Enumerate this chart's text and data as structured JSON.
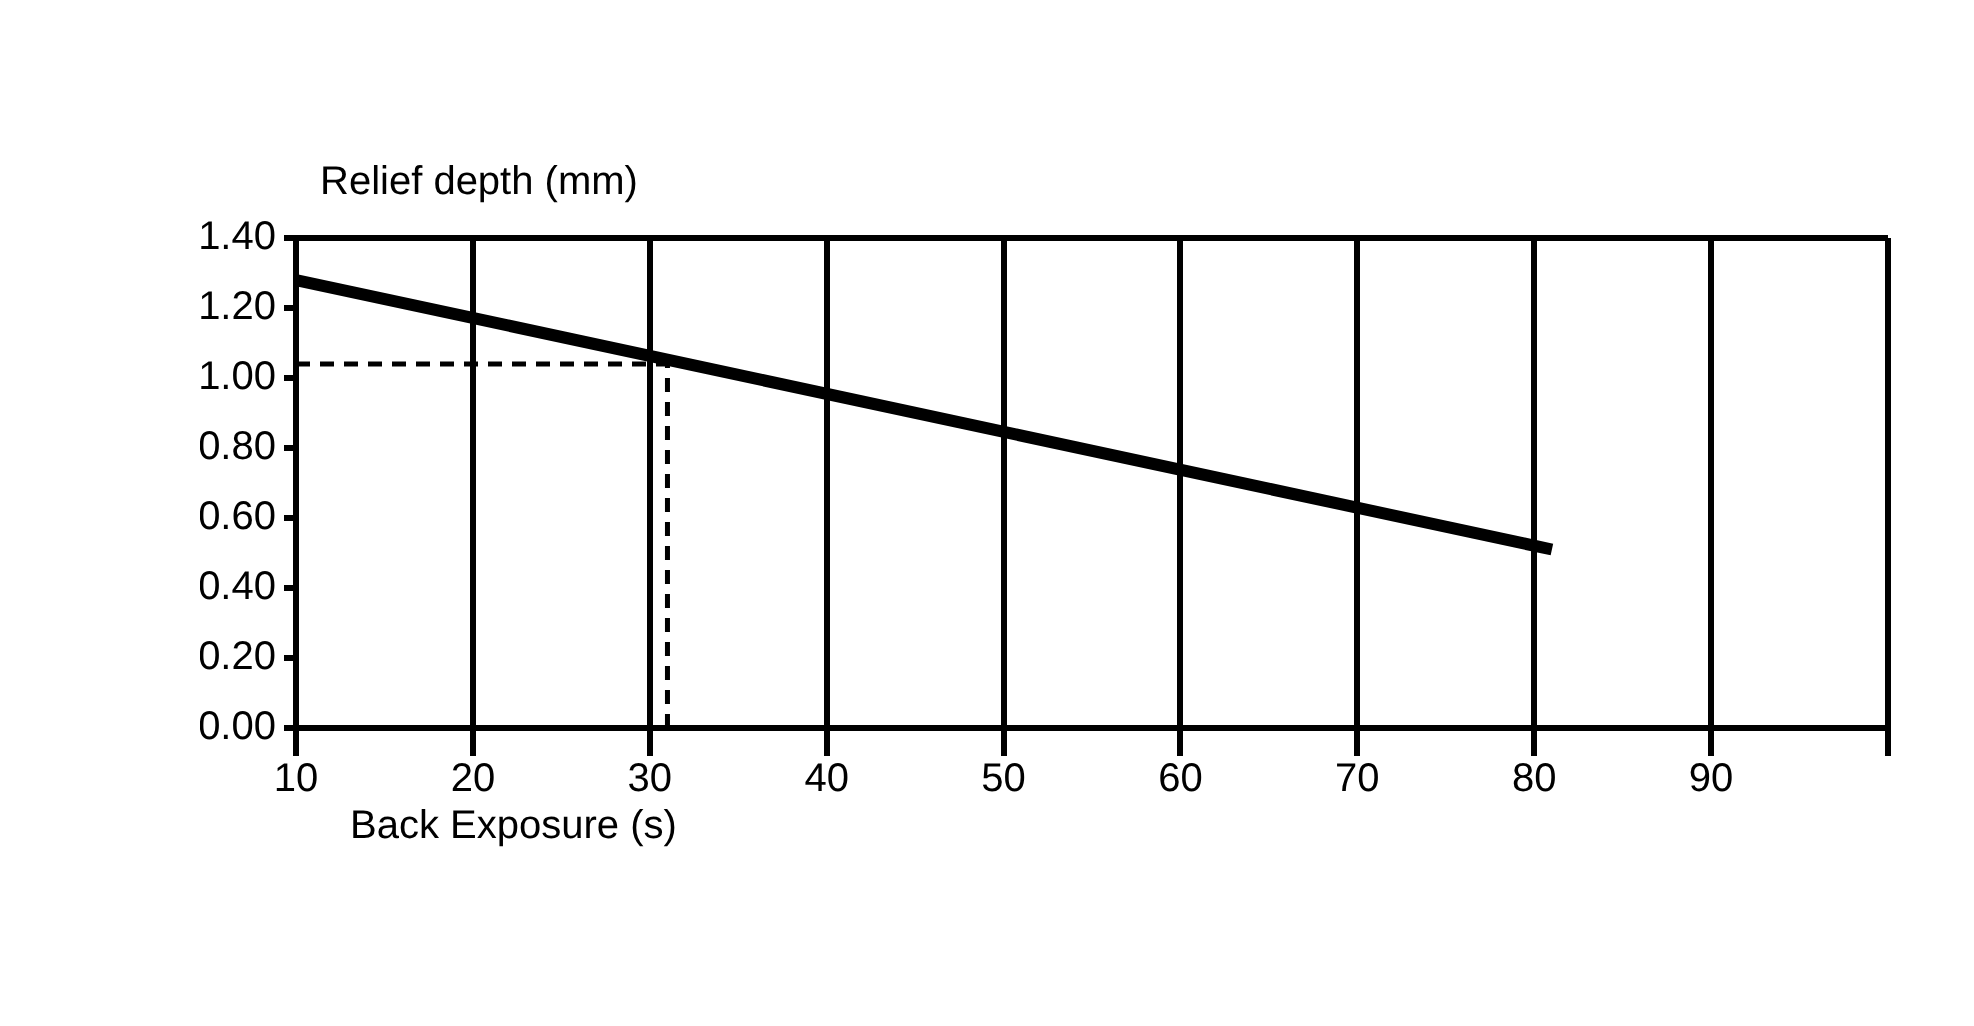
{
  "chart_data": {
    "type": "line",
    "xlabel": "Back Exposure (s)",
    "ylabel": "Relief depth (mm)",
    "x": [
      10,
      81
    ],
    "series": [
      {
        "color": "#000000",
        "values": [
          1.28,
          0.51
        ]
      }
    ],
    "xlim": [
      10,
      100
    ],
    "xticks": [
      10,
      20,
      30,
      40,
      50,
      60,
      70,
      80,
      90,
      {
        "value": 100,
        "label": null
      }
    ],
    "ylim": [
      0,
      1.4
    ],
    "yticks": [
      {
        "value": 0,
        "label": "0.00"
      },
      {
        "value": 0.2,
        "label": "0.20"
      },
      {
        "value": 0.4,
        "label": "0.40"
      },
      {
        "value": 0.6,
        "label": "0.60"
      },
      {
        "value": 0.8,
        "label": "0.80"
      },
      {
        "value": 1,
        "label": "1.00"
      },
      {
        "value": 1.2,
        "label": "1.20"
      },
      {
        "value": 1.4,
        "label": "1.40"
      }
    ],
    "ref_lines": [
      {
        "axis": "y",
        "value": 1.04,
        "color": "#000000",
        "line_style": "dashed"
      },
      {
        "axis": "x",
        "value": 31,
        "color": "#000000",
        "line_style": "dashed"
      }
    ],
    "grid": "x",
    "legend": false,
    "marker": "none",
    "line_style": "solid"
  }
}
